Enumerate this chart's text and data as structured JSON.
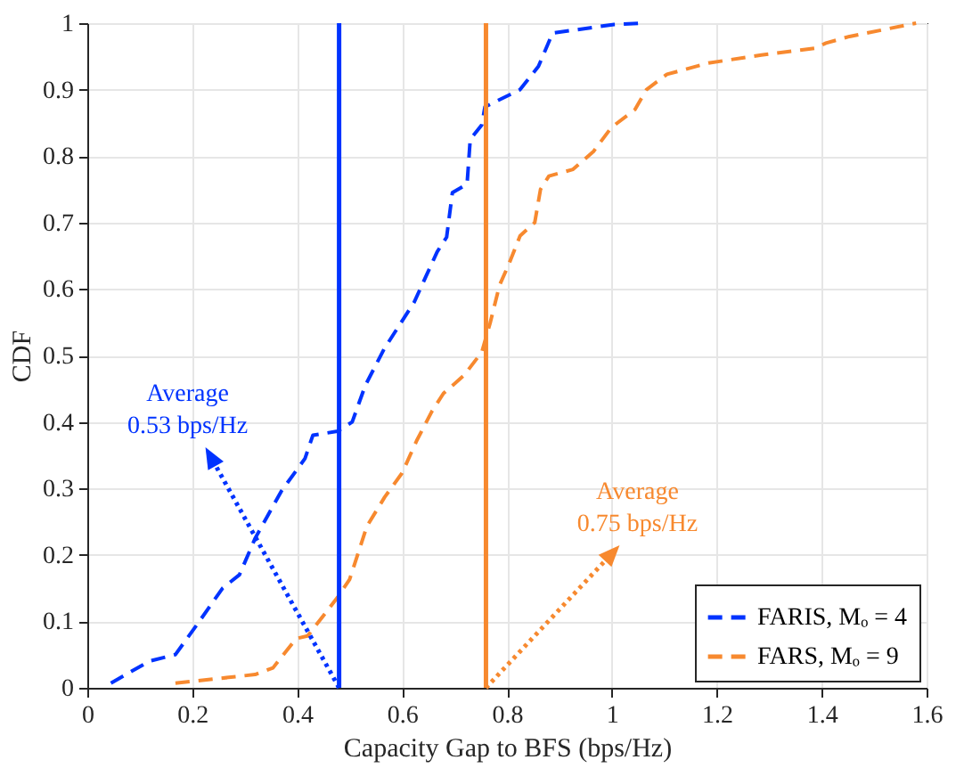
{
  "chart_data": {
    "type": "line",
    "xlabel": "Capacity Gap to BFS (bps/Hz)",
    "ylabel": "CDF",
    "xlim": [
      0,
      1.6
    ],
    "xticks": [
      0,
      0.2,
      0.4,
      0.6,
      0.8,
      1,
      1.2,
      1.4,
      1.6
    ],
    "ylim": [
      0,
      1
    ],
    "yticks": [
      0,
      0.1,
      0.2,
      0.3,
      0.4,
      0.5,
      0.6,
      0.7,
      0.8,
      0.9,
      1
    ],
    "grid": true,
    "legend": "bottom right",
    "line_style": "dashed",
    "marker": "none",
    "series": [
      {
        "name": "FARIS, Mₒ = 4",
        "color": "#0033ff",
        "x": [
          0.045,
          0.118,
          0.168,
          0.21,
          0.258,
          0.29,
          0.32,
          0.37,
          0.415,
          0.43,
          0.477,
          0.505,
          0.53,
          0.566,
          0.623,
          0.667,
          0.685,
          0.696,
          0.724,
          0.73,
          0.752,
          0.758,
          0.825,
          0.86,
          0.887,
          1.004,
          1.055
        ],
        "values": [
          0.007,
          0.04,
          0.05,
          0.096,
          0.15,
          0.17,
          0.225,
          0.296,
          0.345,
          0.38,
          0.386,
          0.4,
          0.455,
          0.51,
          0.58,
          0.656,
          0.678,
          0.745,
          0.758,
          0.825,
          0.847,
          0.874,
          0.9,
          0.935,
          0.985,
          0.998,
          1.0
        ]
      },
      {
        "name": "FARS, Mₒ = 9",
        "color": "#f7892f",
        "x": [
          0.168,
          0.32,
          0.354,
          0.398,
          0.42,
          0.477,
          0.5,
          0.533,
          0.567,
          0.6,
          0.628,
          0.657,
          0.679,
          0.718,
          0.752,
          0.768,
          0.786,
          0.803,
          0.825,
          0.853,
          0.864,
          0.88,
          0.926,
          0.965,
          0.999,
          1.044,
          1.066,
          1.105,
          1.184,
          1.285,
          1.386,
          1.408,
          1.453,
          1.58
        ],
        "values": [
          0.007,
          0.02,
          0.03,
          0.074,
          0.078,
          0.136,
          0.163,
          0.243,
          0.287,
          0.323,
          0.372,
          0.416,
          0.443,
          0.47,
          0.505,
          0.549,
          0.606,
          0.636,
          0.68,
          0.7,
          0.75,
          0.77,
          0.78,
          0.807,
          0.843,
          0.87,
          0.9,
          0.923,
          0.94,
          0.952,
          0.962,
          0.97,
          0.98,
          1.0
        ]
      }
    ],
    "ref_lines": [
      {
        "axis": "x",
        "value": 0.48,
        "color": "#0033ff",
        "line_style": "solid"
      },
      {
        "axis": "x",
        "value": 0.76,
        "color": "#f7892f",
        "line_style": "solid"
      }
    ],
    "annotations": [
      {
        "text": "Average\n0.53 bps/Hz",
        "x": 0.48,
        "y": 0
      },
      {
        "text": "Average\n0.75 bps/Hz",
        "x": 0.76,
        "y": 0
      }
    ]
  }
}
